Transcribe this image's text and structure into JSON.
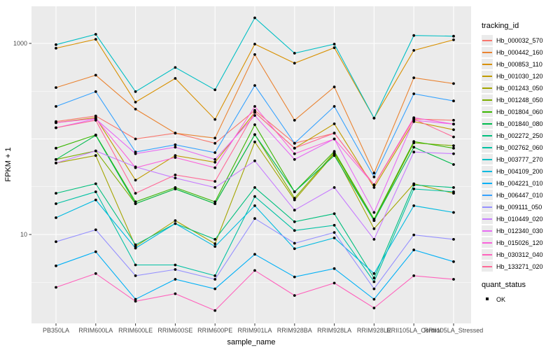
{
  "chart_data": {
    "type": "line",
    "title": "",
    "xlabel": "sample_name",
    "ylabel": "FPKM + 1",
    "y_scale": "log10",
    "y_tick_labels": [
      "10",
      "1000"
    ],
    "y_tick_values": [
      10,
      1000
    ],
    "ylim": [
      1.17,
      2450
    ],
    "grid": "on",
    "panel_bg": "#EBEBEB",
    "grid_color": "#FFFFFF",
    "point_color": "#000000",
    "axis_text_color": "#4d4d4d",
    "categories": [
      "PB350LA",
      "RRIM600LA",
      "RRIM600LE",
      "RRIM600SE",
      "RRIM600PE",
      "RRIM901LA",
      "RRIM928BA",
      "RRIM928LA",
      "RRIM928LE",
      "RRII105LA_Control",
      "RRII105LA_Stressed"
    ],
    "series": [
      {
        "name": "Hb_000032_570",
        "color": "#F8766D",
        "values": [
          152,
          174,
          100,
          115,
          90,
          199,
          90,
          115,
          33,
          162,
          157
        ]
      },
      {
        "name": "Hb_000442_160",
        "color": "#EA8331",
        "values": [
          345,
          465,
          205,
          115,
          102,
          765,
          157,
          350,
          44,
          437,
          380
        ]
      },
      {
        "name": "Hb_000853_110",
        "color": "#D89000",
        "values": [
          890,
          1105,
          243,
          430,
          160,
          983,
          620,
          900,
          165,
          845,
          1090
        ]
      },
      {
        "name": "Hb_001030_120",
        "color": "#C09B00",
        "values": [
          148,
          167,
          37,
          67,
          57,
          190,
          80,
          144,
          31,
          152,
          125
        ]
      },
      {
        "name": "Hb_001243_050",
        "color": "#A3A500",
        "values": [
          56,
          67,
          7.5,
          14,
          8,
          93,
          23,
          70,
          11.5,
          34,
          27
        ]
      },
      {
        "name": "Hb_001248_050",
        "color": "#7CAE00",
        "values": [
          61,
          75,
          21,
          30,
          21,
          111,
          24,
          72,
          14,
          91,
          85
        ]
      },
      {
        "name": "Hb_001804_060",
        "color": "#39B600",
        "values": [
          80,
          110,
          22,
          31,
          22,
          141,
          28,
          74,
          14.5,
          94,
          80
        ]
      },
      {
        "name": "Hb_001840_080",
        "color": "#00BB4E",
        "values": [
          61,
          109,
          21,
          30,
          21,
          111,
          28,
          67,
          14,
          82,
          54
        ]
      },
      {
        "name": "Hb_002272_250",
        "color": "#00BF7D",
        "values": [
          27,
          34,
          7.8,
          13,
          8.9,
          31,
          13.6,
          16.5,
          3.5,
          33,
          31
        ]
      },
      {
        "name": "Hb_002762_060",
        "color": "#00C1A3",
        "values": [
          21,
          28,
          4.8,
          4.8,
          3.7,
          25,
          11,
          12.5,
          3.2,
          30,
          28
        ]
      },
      {
        "name": "Hb_003777_270",
        "color": "#00BFC4",
        "values": [
          970,
          1245,
          313,
          560,
          327,
          1850,
          790,
          983,
          165,
          1210,
          1190
        ]
      },
      {
        "name": "Hb_004109_200",
        "color": "#00BAE0",
        "values": [
          15,
          23,
          7.2,
          13,
          7.5,
          20,
          7.1,
          9.2,
          3.9,
          20,
          17
        ]
      },
      {
        "name": "Hb_004221_010",
        "color": "#00B0F6",
        "values": [
          4.7,
          6.6,
          2.1,
          3.4,
          2.7,
          6.2,
          3.6,
          4.4,
          2.1,
          6.9,
          5.2
        ]
      },
      {
        "name": "Hb_006447_010",
        "color": "#35A2FF",
        "values": [
          219,
          313,
          73,
          87,
          72,
          363,
          90,
          219,
          40,
          297,
          250
        ]
      },
      {
        "name": "Hb_009111_050",
        "color": "#9590FF",
        "values": [
          8.4,
          11.2,
          3.7,
          4.3,
          3.4,
          14.7,
          8.1,
          10.5,
          2.7,
          9.9,
          8.9
        ]
      },
      {
        "name": "Hb_010449_020",
        "color": "#C77CFF",
        "values": [
          56,
          75,
          51,
          39,
          31,
          59,
          18,
          31,
          8.9,
          73,
          70
        ]
      },
      {
        "name": "Hb_012340_030",
        "color": "#E76BF3",
        "values": [
          131,
          162,
          70,
          82,
          61,
          176,
          61,
          100,
          17,
          157,
          143
        ]
      },
      {
        "name": "Hb_015026_120",
        "color": "#FA62DB",
        "values": [
          148,
          164,
          50,
          64,
          50,
          219,
          70,
          100,
          33,
          167,
          143
        ]
      },
      {
        "name": "Hb_030312_040",
        "color": "#FF62BC",
        "values": [
          2.8,
          3.9,
          2.0,
          2.4,
          1.6,
          4.2,
          2.3,
          3.1,
          1.7,
          3.7,
          3.4
        ]
      },
      {
        "name": "Hb_133271_020",
        "color": "#FF6A98",
        "values": [
          131,
          157,
          27,
          42,
          36,
          190,
          80,
          115,
          33,
          162,
          105
        ]
      }
    ],
    "legend": {
      "title": "tracking_id",
      "position": "right"
    },
    "quant_legend": {
      "title": "quant_status",
      "items": [
        "OK"
      ]
    }
  }
}
